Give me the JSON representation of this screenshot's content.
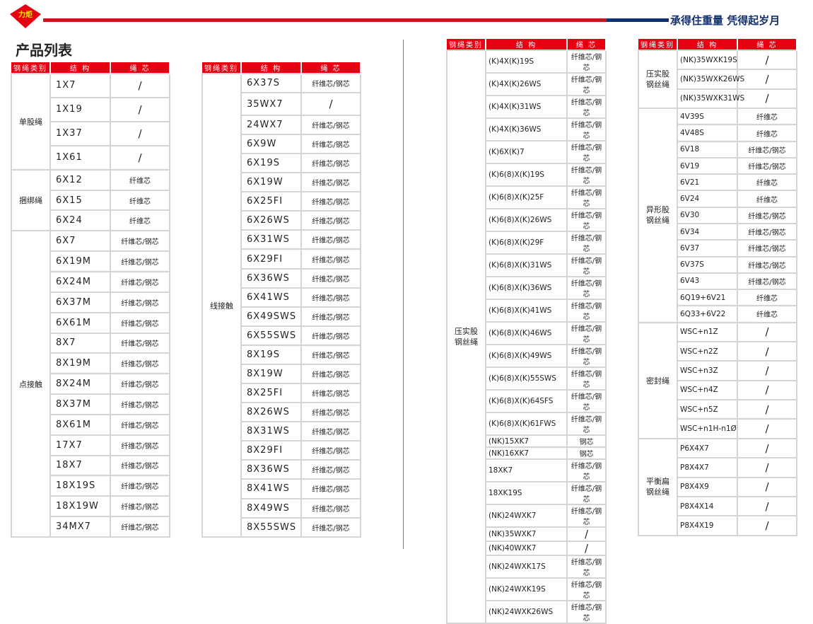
{
  "header": {
    "logo_text": "力炬",
    "slogan": "承得住重量 凭得起岁月",
    "title": "产品列表"
  },
  "columns": [
    "钢绳类别",
    "结 构",
    "绳 芯"
  ],
  "colors": {
    "header_red": "#e60012",
    "brand_red": "#c8161d",
    "brand_blue": "#12306e"
  },
  "tables": [
    {
      "groups": [
        {
          "category": "单股绳",
          "rows": [
            [
              "1X7",
              "/"
            ],
            [
              "1X19",
              "/"
            ],
            [
              "1X37",
              "/"
            ],
            [
              "1X61",
              "/"
            ]
          ]
        },
        {
          "category": "捆绑绳",
          "rows": [
            [
              "6X12",
              "纤维芯"
            ],
            [
              "6X15",
              "纤维芯"
            ],
            [
              "6X24",
              "纤维芯"
            ]
          ]
        },
        {
          "category": "点接触",
          "rows": [
            [
              "6X7",
              "纤维芯/钢芯"
            ],
            [
              "6X19M",
              "纤维芯/钢芯"
            ],
            [
              "6X24M",
              "纤维芯/钢芯"
            ],
            [
              "6X37M",
              "纤维芯/钢芯"
            ],
            [
              "6X61M",
              "纤维芯/钢芯"
            ],
            [
              "8X7",
              "纤维芯/钢芯"
            ],
            [
              "8X19M",
              "纤维芯/钢芯"
            ],
            [
              "8X24M",
              "纤维芯/钢芯"
            ],
            [
              "8X37M",
              "纤维芯/钢芯"
            ],
            [
              "8X61M",
              "纤维芯/钢芯"
            ],
            [
              "17X7",
              "纤维芯/钢芯"
            ],
            [
              "18X7",
              "纤维芯/钢芯"
            ],
            [
              "18X19S",
              "纤维芯/钢芯"
            ],
            [
              "18X19W",
              "纤维芯/钢芯"
            ],
            [
              "34MX7",
              "纤维芯/钢芯"
            ]
          ]
        }
      ]
    },
    {
      "groups": [
        {
          "category": "线接触",
          "rows": [
            [
              "6X37S",
              "纤维芯/钢芯"
            ],
            [
              "35WX7",
              "/"
            ],
            [
              "24WX7",
              "纤维芯/钢芯"
            ],
            [
              "6X9W",
              "纤维芯/钢芯"
            ],
            [
              "6X19S",
              "纤维芯/钢芯"
            ],
            [
              "6X19W",
              "纤维芯/钢芯"
            ],
            [
              "6X25FI",
              "纤维芯/钢芯"
            ],
            [
              "6X26WS",
              "纤维芯/钢芯"
            ],
            [
              "6X31WS",
              "纤维芯/钢芯"
            ],
            [
              "6X29FI",
              "纤维芯/钢芯"
            ],
            [
              "6X36WS",
              "纤维芯/钢芯"
            ],
            [
              "6X41WS",
              "纤维芯/钢芯"
            ],
            [
              "6X49SWS",
              "纤维芯/钢芯"
            ],
            [
              "6X55SWS",
              "纤维芯/钢芯"
            ],
            [
              "8X19S",
              "纤维芯/钢芯"
            ],
            [
              "8X19W",
              "纤维芯/钢芯"
            ],
            [
              "8X25FI",
              "纤维芯/钢芯"
            ],
            [
              "8X26WS",
              "纤维芯/钢芯"
            ],
            [
              "8X31WS",
              "纤维芯/钢芯"
            ],
            [
              "8X29FI",
              "纤维芯/钢芯"
            ],
            [
              "8X36WS",
              "纤维芯/钢芯"
            ],
            [
              "8X41WS",
              "纤维芯/钢芯"
            ],
            [
              "8X49WS",
              "纤维芯/钢芯"
            ],
            [
              "8X55SWS",
              "纤维芯/钢芯"
            ]
          ]
        }
      ]
    },
    {
      "groups": [
        {
          "category": "压实股钢丝绳",
          "rows": [
            [
              "(K)4X(K)19S",
              "纤维芯/钢芯"
            ],
            [
              "(K)4X(K)26WS",
              "纤维芯/钢芯"
            ],
            [
              "(K)4X(K)31WS",
              "纤维芯/钢芯"
            ],
            [
              "(K)4X(K)36WS",
              "纤维芯/钢芯"
            ],
            [
              "(K)6X(K)7",
              "纤维芯/钢芯"
            ],
            [
              "(K)6(8)X(K)19S",
              "纤维芯/钢芯"
            ],
            [
              "(K)6(8)X(K)25F",
              "纤维芯/钢芯"
            ],
            [
              "(K)6(8)X(K)26WS",
              "纤维芯/钢芯"
            ],
            [
              "(K)6(8)X(K)29F",
              "纤维芯/钢芯"
            ],
            [
              "(K)6(8)X(K)31WS",
              "纤维芯/钢芯"
            ],
            [
              "(K)6(8)X(K)36WS",
              "纤维芯/钢芯"
            ],
            [
              "(K)6(8)X(K)41WS",
              "纤维芯/钢芯"
            ],
            [
              "(K)6(8)X(K)46WS",
              "纤维芯/钢芯"
            ],
            [
              "(K)6(8)X(K)49WS",
              "纤维芯/钢芯"
            ],
            [
              "(K)6(8)X(K)55SWS",
              "纤维芯/钢芯"
            ],
            [
              "(K)6(8)X(K)64SFS",
              "纤维芯/钢芯"
            ],
            [
              "(K)6(8)X(K)61FWS",
              "纤维芯/钢芯"
            ],
            [
              "(NK)15XK7",
              "钢芯"
            ],
            [
              "(NK)16XK7",
              "钢芯"
            ],
            [
              "18XK7",
              "纤维芯/钢芯"
            ],
            [
              "18XK19S",
              "纤维芯/钢芯"
            ],
            [
              "(NK)24WXK7",
              "纤维芯/钢芯"
            ],
            [
              "(NK)35WXK7",
              "/"
            ],
            [
              "(NK)40WXK7",
              "/"
            ],
            [
              "(NK)24WXK17S",
              "纤维芯/钢芯"
            ],
            [
              "(NK)24WXK19S",
              "纤维芯/钢芯"
            ],
            [
              "(NK)24WXK26WS",
              "纤维芯/钢芯"
            ]
          ]
        }
      ]
    },
    {
      "groups": [
        {
          "category": "压实股钢丝绳",
          "rows": [
            [
              "(NK)35WXK19S",
              "/"
            ],
            [
              "(NK)35WXK26WS",
              "/"
            ],
            [
              "(NK)35WXK31WS",
              "/"
            ]
          ]
        },
        {
          "category": "异形股钢丝绳",
          "rows": [
            [
              "4V39S",
              "纤维芯"
            ],
            [
              "4V48S",
              "纤维芯"
            ],
            [
              "6V18",
              "纤维芯/钢芯"
            ],
            [
              "6V19",
              "纤维芯/钢芯"
            ],
            [
              "6V21",
              "纤维芯"
            ],
            [
              "6V24",
              "纤维芯"
            ],
            [
              "6V30",
              "纤维芯/钢芯"
            ],
            [
              "6V34",
              "纤维芯/钢芯"
            ],
            [
              "6V37",
              "纤维芯/钢芯"
            ],
            [
              "6V37S",
              "纤维芯/钢芯"
            ],
            [
              "6V43",
              "纤维芯/钢芯"
            ],
            [
              "6Q19+6V21",
              "纤维芯"
            ],
            [
              "6Q33+6V22",
              "纤维芯"
            ]
          ]
        },
        {
          "category": "密封绳",
          "rows": [
            [
              "WSC+n1Z",
              "/"
            ],
            [
              "WSC+n2Z",
              "/"
            ],
            [
              "WSC+n3Z",
              "/"
            ],
            [
              "WSC+n4Z",
              "/"
            ],
            [
              "WSC+n5Z",
              "/"
            ],
            [
              "WSC+n1H-n1Ø",
              "/"
            ]
          ]
        },
        {
          "category": "平衡扁钢丝绳",
          "rows": [
            [
              "P6X4X7",
              "/"
            ],
            [
              "P8X4X7",
              "/"
            ],
            [
              "P8X4X9",
              "/"
            ],
            [
              "P8X4X14",
              "/"
            ],
            [
              "P8X4X19",
              "/"
            ]
          ]
        }
      ]
    }
  ]
}
